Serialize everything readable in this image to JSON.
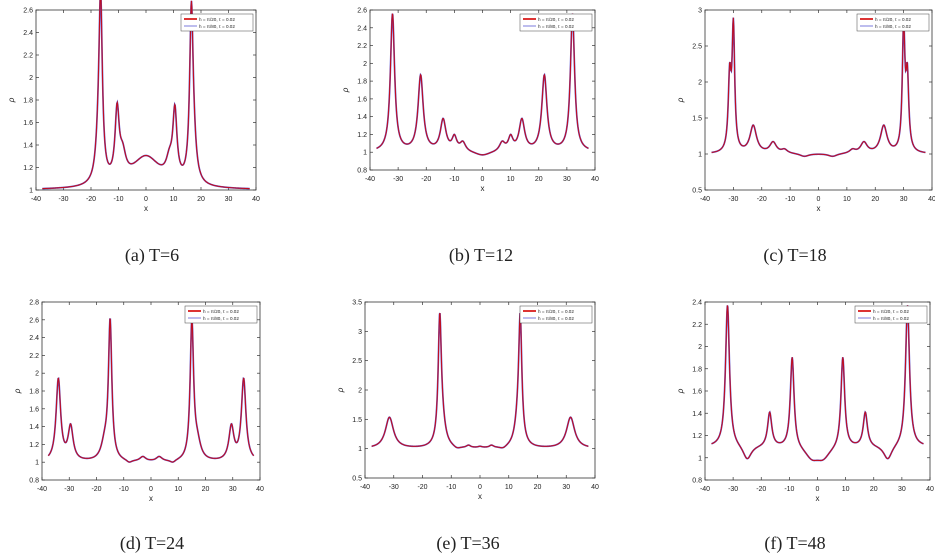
{
  "colors": {
    "series1": "#d40000",
    "series2": "#5a5ad6",
    "axis": "#333333"
  },
  "captions": [
    "(a)  T=6",
    "(b)  T=12",
    "(c)  T=18",
    "(d)  T=24",
    "(e)  T=36",
    "(f)  T=48"
  ],
  "chart_data": [
    {
      "type": "line",
      "title": "",
      "xlabel": "x",
      "ylabel": "ρ",
      "xlim": [
        -40,
        40
      ],
      "ylim": [
        1,
        2.6
      ],
      "xticks": [
        -40,
        -30,
        -20,
        -10,
        0,
        10,
        20,
        30,
        40
      ],
      "yticks": [
        1,
        1.2,
        1.4,
        1.6,
        1.8,
        2,
        2.2,
        2.4,
        2.6
      ],
      "ytick_labels": [
        "1",
        "1.2",
        "1.4",
        "1.6",
        "1.8",
        "2",
        "2.2",
        "2.4",
        "2.6"
      ],
      "legend_position": "top-right",
      "series": [
        {
          "name": "h = π/20, τ = 0.02"
        },
        {
          "name": "h = π/80, τ = 0.02"
        }
      ],
      "baseline": 1,
      "xrange": [
        -37.7,
        37.7
      ],
      "peaks": [
        [
          -16.5,
          1.55,
          0.75
        ],
        [
          16.5,
          1.45,
          0.75
        ],
        [
          -10.5,
          0.6,
          0.9
        ],
        [
          10.5,
          0.6,
          0.9
        ],
        [
          -8.5,
          0.2,
          1.4
        ],
        [
          8.5,
          0.15,
          1.4
        ],
        [
          0,
          0.28,
          6.5
        ],
        [
          -17.3,
          0.25,
          1.2
        ],
        [
          17.3,
          0.25,
          1.2
        ]
      ]
    },
    {
      "type": "line",
      "title": "",
      "xlabel": "x",
      "ylabel": "ρ",
      "xlim": [
        -40,
        40
      ],
      "ylim": [
        0.8,
        2.6
      ],
      "xticks": [
        -40,
        -30,
        -20,
        -10,
        0,
        10,
        20,
        30,
        40
      ],
      "yticks": [
        0.8,
        1,
        1.2,
        1.4,
        1.6,
        1.8,
        2,
        2.2,
        2.4,
        2.6
      ],
      "ytick_labels": [
        "0.8",
        "1",
        "1.2",
        "1.4",
        "1.6",
        "1.8",
        "2",
        "2.2",
        "2.4",
        "2.6"
      ],
      "legend_position": "top-right",
      "series": [
        {
          "name": "h = π/20, τ = 0.02"
        },
        {
          "name": "h = π/80, τ = 0.02"
        }
      ],
      "baseline": 1.0,
      "xrange": [
        -37.7,
        37.7
      ],
      "peaks": [
        [
          -32,
          1.55,
          0.9
        ],
        [
          32,
          1.55,
          0.9
        ],
        [
          -22,
          0.85,
          1.1
        ],
        [
          22,
          0.85,
          1.1
        ],
        [
          -14,
          0.35,
          1.2
        ],
        [
          14,
          0.35,
          1.2
        ],
        [
          -10,
          0.15,
          1.0
        ],
        [
          10,
          0.15,
          1.0
        ],
        [
          -7,
          0.1,
          1.2
        ],
        [
          7,
          0.1,
          1.2
        ],
        [
          0,
          -0.05,
          3.5
        ]
      ]
    },
    {
      "type": "line",
      "title": "",
      "xlabel": "x",
      "ylabel": "ρ",
      "xlim": [
        -40,
        40
      ],
      "ylim": [
        0.5,
        3
      ],
      "xticks": [
        -40,
        -30,
        -20,
        -10,
        0,
        10,
        20,
        30,
        40
      ],
      "yticks": [
        0.5,
        1,
        1.5,
        2,
        2.5,
        3
      ],
      "ytick_labels": [
        "0.5",
        "1",
        "1.5",
        "2",
        "2.5",
        "3"
      ],
      "legend_position": "top-right",
      "series": [
        {
          "name": "h = π/20, τ = 0.02"
        },
        {
          "name": "h = π/80, τ = 0.02"
        }
      ],
      "baseline": 1.0,
      "xrange": [
        -37.7,
        37.7
      ],
      "peaks": [
        [
          -30,
          1.7,
          0.55
        ],
        [
          30,
          1.7,
          0.55
        ],
        [
          -31.3,
          1.0,
          0.6
        ],
        [
          31.3,
          1.0,
          0.6
        ],
        [
          -23,
          0.38,
          1.4
        ],
        [
          23,
          0.38,
          1.4
        ],
        [
          -16,
          0.15,
          1.4
        ],
        [
          16,
          0.15,
          1.4
        ],
        [
          -12,
          0.05,
          1.3
        ],
        [
          12,
          0.05,
          1.3
        ],
        [
          -5,
          -0.04,
          2
        ],
        [
          5,
          -0.04,
          2
        ]
      ]
    },
    {
      "type": "line",
      "title": "",
      "xlabel": "x",
      "ylabel": "ρ",
      "xlim": [
        -40,
        40
      ],
      "ylim": [
        0.8,
        2.8
      ],
      "xticks": [
        -40,
        -30,
        -20,
        -10,
        0,
        10,
        20,
        30,
        40
      ],
      "yticks": [
        0.8,
        1,
        1.2,
        1.4,
        1.6,
        1.8,
        2,
        2.2,
        2.4,
        2.6,
        2.8
      ],
      "ytick_labels": [
        "0.8",
        "1",
        "1.2",
        "1.4",
        "1.6",
        "1.8",
        "2",
        "2.2",
        "2.4",
        "2.6",
        "2.8"
      ],
      "legend_position": "top-right",
      "series": [
        {
          "name": "h = π/20, τ = 0.02"
        },
        {
          "name": "h = π/80, τ = 0.02"
        }
      ],
      "baseline": 1.0,
      "xrange": [
        -37.7,
        37.7
      ],
      "peaks": [
        [
          -15,
          1.55,
          0.75
        ],
        [
          15,
          1.55,
          0.75
        ],
        [
          -34,
          0.92,
          1.0
        ],
        [
          34,
          0.92,
          1.0
        ],
        [
          -29.5,
          0.38,
          1.1
        ],
        [
          29.5,
          0.38,
          1.1
        ],
        [
          -17,
          0.18,
          1.5
        ],
        [
          17,
          0.18,
          1.5
        ],
        [
          -3,
          0.05,
          1.3
        ],
        [
          3,
          0.05,
          1.3
        ],
        [
          -8,
          -0.03,
          1.2
        ],
        [
          8,
          -0.03,
          1.2
        ]
      ]
    },
    {
      "type": "line",
      "title": "",
      "xlabel": "x",
      "ylabel": "ρ",
      "xlim": [
        -40,
        40
      ],
      "ylim": [
        0.5,
        3.5
      ],
      "xticks": [
        -40,
        -30,
        -20,
        -10,
        0,
        10,
        20,
        30,
        40
      ],
      "yticks": [
        0.5,
        1,
        1.5,
        2,
        2.5,
        3,
        3.5
      ],
      "ytick_labels": [
        "0.5",
        "1",
        "1.5",
        "2",
        "2.5",
        "3",
        "3.5"
      ],
      "legend_position": "top-right",
      "series": [
        {
          "name": "h = π/20, τ = 0.02"
        },
        {
          "name": "h = π/80, τ = 0.02"
        }
      ],
      "baseline": 1.0,
      "xrange": [
        -37.7,
        37.7
      ],
      "peaks": [
        [
          -14,
          2.0,
          0.65
        ],
        [
          14,
          2.0,
          0.65
        ],
        [
          -13.3,
          0.4,
          1.4
        ],
        [
          13.3,
          0.4,
          1.4
        ],
        [
          -31.5,
          0.53,
          1.7
        ],
        [
          31.5,
          0.53,
          1.7
        ],
        [
          -4,
          0.04,
          0.9
        ],
        [
          4,
          0.04,
          0.9
        ],
        [
          0,
          0.02,
          0.9
        ],
        [
          -8,
          -0.04,
          1.5
        ],
        [
          8,
          -0.04,
          1.5
        ]
      ]
    },
    {
      "type": "line",
      "title": "",
      "xlabel": "x",
      "ylabel": "ρ",
      "xlim": [
        -40,
        40
      ],
      "ylim": [
        0.8,
        2.4
      ],
      "xticks": [
        -40,
        -30,
        -20,
        -10,
        0,
        10,
        20,
        30,
        40
      ],
      "yticks": [
        0.8,
        1,
        1.2,
        1.4,
        1.6,
        1.8,
        2,
        2.2,
        2.4
      ],
      "ytick_labels": [
        "0.8",
        "1",
        "1.2",
        "1.4",
        "1.6",
        "1.8",
        "2",
        "2.2",
        "2.4"
      ],
      "legend_position": "top-right",
      "series": [
        {
          "name": "h = π/20, τ = 0.02"
        },
        {
          "name": "h = π/80, τ = 0.02"
        }
      ],
      "baseline": 1.1,
      "xrange": [
        -37.7,
        37.7
      ],
      "peaks": [
        [
          -32,
          1.28,
          0.85
        ],
        [
          32,
          1.28,
          0.85
        ],
        [
          -9,
          0.82,
          0.8
        ],
        [
          9,
          0.82,
          0.8
        ],
        [
          -17,
          0.31,
          0.9
        ],
        [
          17,
          0.31,
          0.9
        ],
        [
          -25,
          -0.13,
          1.8
        ],
        [
          25,
          -0.13,
          1.8
        ],
        [
          -2,
          -0.1,
          3.0
        ],
        [
          2,
          -0.1,
          3.0
        ]
      ]
    }
  ]
}
